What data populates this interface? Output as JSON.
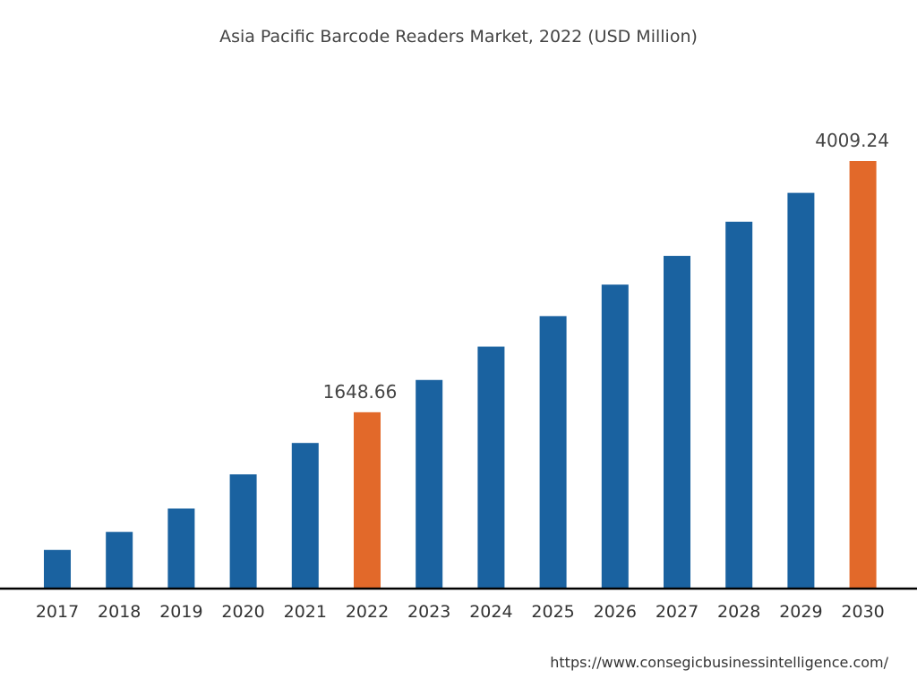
{
  "chart_data": {
    "type": "bar",
    "title": "Asia Pacific Barcode Readers Market, 2022 (USD Million)",
    "xlabel": "",
    "ylabel": "",
    "categories": [
      "2017",
      "2018",
      "2019",
      "2020",
      "2021",
      "2022",
      "2023",
      "2024",
      "2025",
      "2026",
      "2027",
      "2028",
      "2029",
      "2030"
    ],
    "values": [
      355,
      524,
      744,
      1065,
      1360,
      1648.66,
      1952,
      2265,
      2552,
      2848,
      3118,
      3439,
      3710,
      4009.24
    ],
    "highlighted": [
      "2022",
      "2030"
    ],
    "data_labels": {
      "2022": "1648.66",
      "2030": "4009.24"
    },
    "colors": {
      "bar": "#1a62a0",
      "highlight": "#e2692a",
      "axis": "#000000"
    },
    "grid": false,
    "legend": "none"
  },
  "source": "https://www.consegicbusinessintelligence.com/"
}
